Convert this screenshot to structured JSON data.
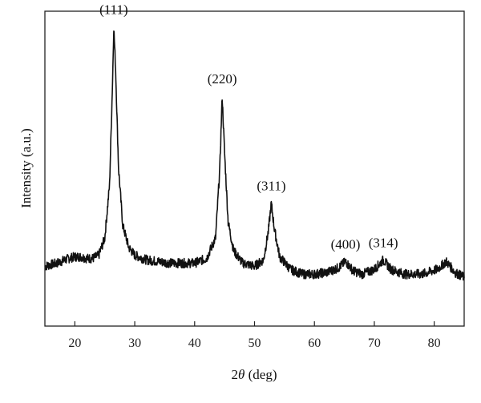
{
  "chart_data": {
    "type": "line",
    "title": "",
    "xlabel_prefix": "2",
    "xlabel_symbol": "θ",
    "xlabel_suffix": " (deg)",
    "ylabel": "Intensity (a.u.)",
    "xlim": [
      15,
      85
    ],
    "ylim": [
      0,
      1
    ],
    "xticks": [
      20,
      30,
      40,
      50,
      60,
      70,
      80
    ],
    "yticks": [],
    "grid": false,
    "legend": "none",
    "line_color": "#111111",
    "series": [
      {
        "values": [
          [
            15,
            0.19
          ],
          [
            17,
            0.2
          ],
          [
            19,
            0.215
          ],
          [
            20,
            0.22
          ],
          [
            21,
            0.22
          ],
          [
            22,
            0.215
          ],
          [
            23,
            0.215
          ],
          [
            24,
            0.225
          ],
          [
            25,
            0.28
          ],
          [
            25.8,
            0.45
          ],
          [
            26.3,
            0.78
          ],
          [
            26.5,
            0.95
          ],
          [
            26.8,
            0.82
          ],
          [
            27.3,
            0.5
          ],
          [
            28,
            0.32
          ],
          [
            29,
            0.25
          ],
          [
            30,
            0.225
          ],
          [
            32,
            0.21
          ],
          [
            34,
            0.205
          ],
          [
            36,
            0.2
          ],
          [
            38,
            0.2
          ],
          [
            40,
            0.2
          ],
          [
            42,
            0.215
          ],
          [
            43.5,
            0.28
          ],
          [
            44.2,
            0.5
          ],
          [
            44.6,
            0.73
          ],
          [
            45,
            0.55
          ],
          [
            45.6,
            0.33
          ],
          [
            46.5,
            0.24
          ],
          [
            48,
            0.2
          ],
          [
            50,
            0.19
          ],
          [
            51.5,
            0.21
          ],
          [
            52.3,
            0.3
          ],
          [
            52.8,
            0.39
          ],
          [
            53.3,
            0.31
          ],
          [
            54.2,
            0.22
          ],
          [
            56,
            0.18
          ],
          [
            58,
            0.165
          ],
          [
            60,
            0.165
          ],
          [
            62,
            0.17
          ],
          [
            64,
            0.185
          ],
          [
            65.2,
            0.205
          ],
          [
            66.5,
            0.175
          ],
          [
            68,
            0.165
          ],
          [
            70,
            0.18
          ],
          [
            71.5,
            0.21
          ],
          [
            72.8,
            0.18
          ],
          [
            75,
            0.165
          ],
          [
            78,
            0.165
          ],
          [
            80.5,
            0.18
          ],
          [
            82,
            0.205
          ],
          [
            83.5,
            0.17
          ],
          [
            85,
            0.155
          ]
        ]
      }
    ],
    "annotations": [
      {
        "text": "(111)",
        "x": 26.5,
        "y": 0.95
      },
      {
        "text": "(220)",
        "x": 44.6,
        "y": 0.73
      },
      {
        "text": "(311)",
        "x": 52.8,
        "y": 0.39
      },
      {
        "text": "(400)",
        "x": 65.2,
        "y": 0.205
      },
      {
        "text": "(314)",
        "x": 71.5,
        "y": 0.21
      }
    ]
  }
}
